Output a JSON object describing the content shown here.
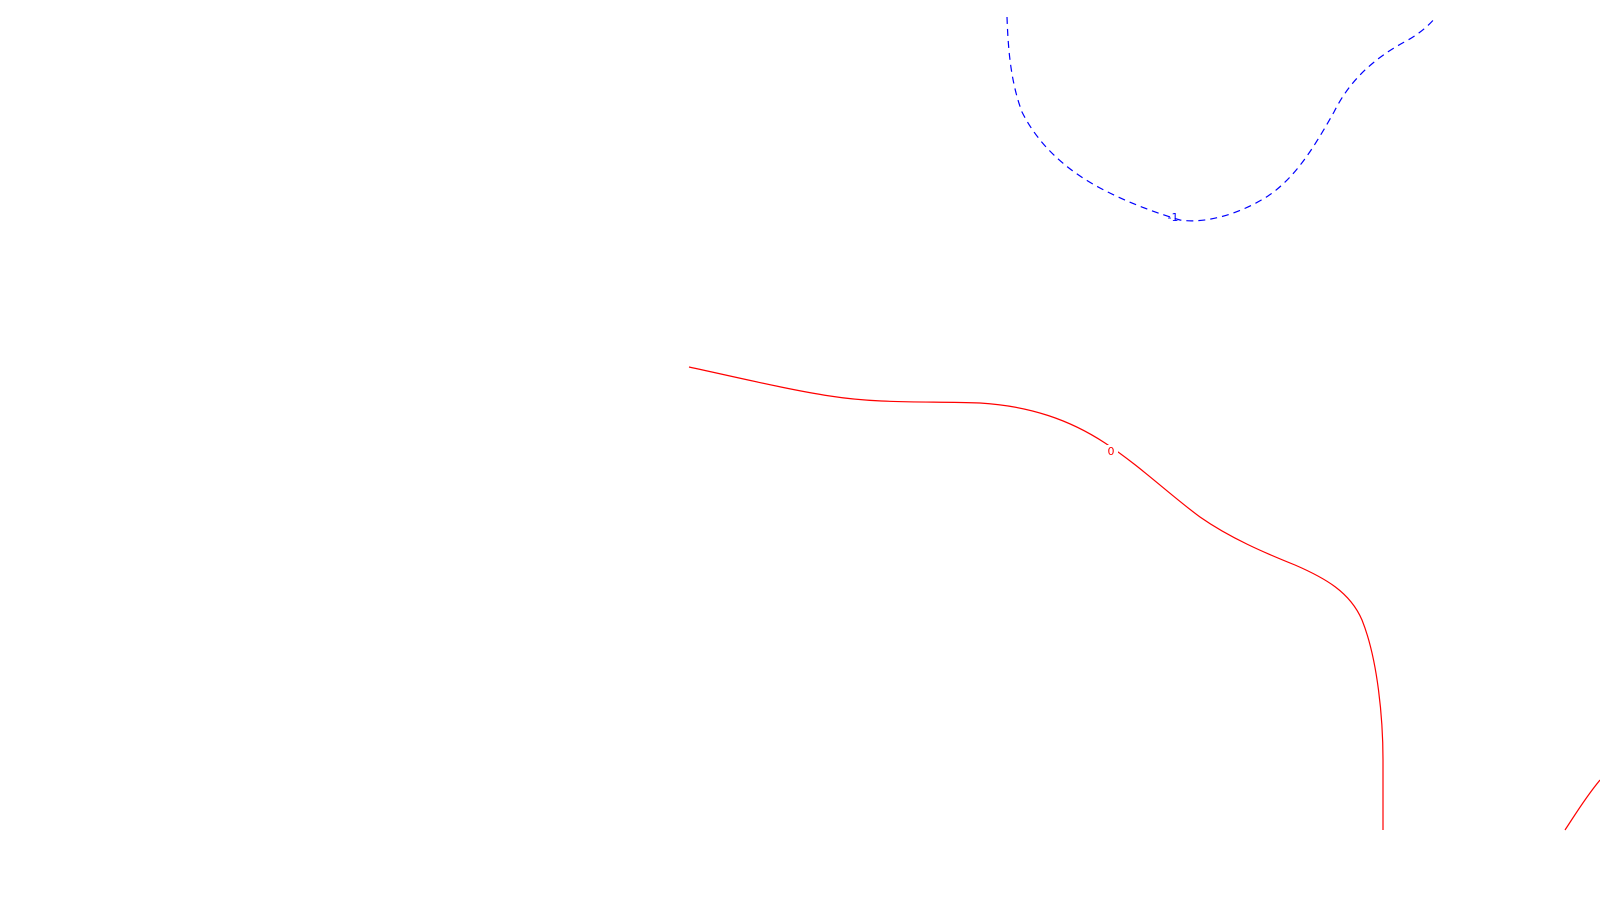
{
  "colors": {
    "background": "#ffffff",
    "positive_contour": "#ff0000",
    "negative_contour": "#0000ff"
  },
  "contours": [
    {
      "level_label": "-1",
      "style": "dashed",
      "color": "#0000ff"
    },
    {
      "level_label": "0",
      "style": "solid",
      "color": "#ff0000"
    },
    {
      "level_label": "",
      "style": "solid",
      "color": "#ff0000"
    }
  ]
}
